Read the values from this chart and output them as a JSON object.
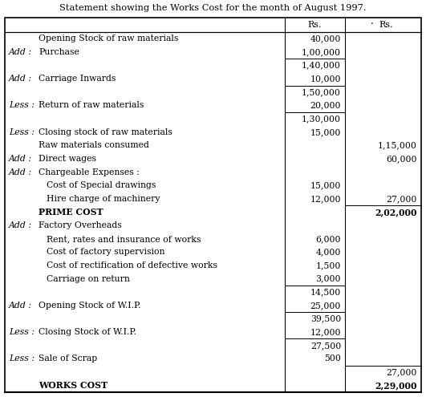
{
  "title": "Statement showing the Works Cost for the month of August 1997.",
  "rows": [
    {
      "prefix": "",
      "label": "Opening Stock of raw materials",
      "col1": "40,000",
      "col2": "",
      "line_above_col1": false,
      "line_above_col2": false,
      "bold": false
    },
    {
      "prefix": "Add :",
      "label": "Purchase",
      "col1": "1,00,000",
      "col2": "",
      "line_above_col1": false,
      "line_above_col2": false,
      "bold": false
    },
    {
      "prefix": "",
      "label": "",
      "col1": "1,40,000",
      "col2": "",
      "line_above_col1": true,
      "line_above_col2": false,
      "bold": false
    },
    {
      "prefix": "Add :",
      "label": "Carriage Inwards",
      "col1": "10,000",
      "col2": "",
      "line_above_col1": false,
      "line_above_col2": false,
      "bold": false
    },
    {
      "prefix": "",
      "label": "",
      "col1": "1,50,000",
      "col2": "",
      "line_above_col1": true,
      "line_above_col2": false,
      "bold": false
    },
    {
      "prefix": "Less :",
      "label": "Return of raw materials",
      "col1": "20,000",
      "col2": "",
      "line_above_col1": false,
      "line_above_col2": false,
      "bold": false
    },
    {
      "prefix": "",
      "label": "",
      "col1": "1,30,000",
      "col2": "",
      "line_above_col1": true,
      "line_above_col2": false,
      "bold": false
    },
    {
      "prefix": "Less :",
      "label": "Closing stock of raw materials",
      "col1": "15,000",
      "col2": "",
      "line_above_col1": false,
      "line_above_col2": false,
      "bold": false
    },
    {
      "prefix": "",
      "label": "Raw materials consumed",
      "col1": "",
      "col2": "1,15,000",
      "line_above_col1": false,
      "line_above_col2": false,
      "bold": false
    },
    {
      "prefix": "Add :",
      "label": "Direct wages",
      "col1": "",
      "col2": "60,000",
      "line_above_col1": false,
      "line_above_col2": false,
      "bold": false
    },
    {
      "prefix": "Add :",
      "label": "Chargeable Expenses :",
      "col1": "",
      "col2": "",
      "line_above_col1": false,
      "line_above_col2": false,
      "bold": false
    },
    {
      "prefix": "",
      "label": "Cost of Special drawings",
      "col1": "15,000",
      "col2": "",
      "line_above_col1": false,
      "line_above_col2": false,
      "bold": false
    },
    {
      "prefix": "",
      "label": "Hire charge of machinery",
      "col1": "12,000",
      "col2": "27,000",
      "line_above_col1": false,
      "line_above_col2": false,
      "bold": false
    },
    {
      "prefix": "",
      "label": "PRIME COST",
      "col1": "",
      "col2": "2,02,000",
      "line_above_col1": false,
      "line_above_col2": true,
      "bold": true
    },
    {
      "prefix": "Add :",
      "label": "Factory Overheads",
      "col1": "",
      "col2": "",
      "line_above_col1": false,
      "line_above_col2": false,
      "bold": false
    },
    {
      "prefix": "",
      "label": "Rent, rates and insurance of works",
      "col1": "6,000",
      "col2": "",
      "line_above_col1": false,
      "line_above_col2": false,
      "bold": false
    },
    {
      "prefix": "",
      "label": "Cost of factory supervision",
      "col1": "4,000",
      "col2": "",
      "line_above_col1": false,
      "line_above_col2": false,
      "bold": false
    },
    {
      "prefix": "",
      "label": "Cost of rectification of defective works",
      "col1": "1,500",
      "col2": "",
      "line_above_col1": false,
      "line_above_col2": false,
      "bold": false
    },
    {
      "prefix": "",
      "label": "Carriage on return",
      "col1": "3,000",
      "col2": "",
      "line_above_col1": false,
      "line_above_col2": false,
      "bold": false
    },
    {
      "prefix": "",
      "label": "",
      "col1": "14,500",
      "col2": "",
      "line_above_col1": true,
      "line_above_col2": false,
      "bold": false
    },
    {
      "prefix": "Add :",
      "label": "Opening Stock of W.I.P.",
      "col1": "25,000",
      "col2": "",
      "line_above_col1": false,
      "line_above_col2": false,
      "bold": false
    },
    {
      "prefix": "",
      "label": "",
      "col1": "39,500",
      "col2": "",
      "line_above_col1": true,
      "line_above_col2": false,
      "bold": false
    },
    {
      "prefix": "Less :",
      "label": "Closing Stock of W.I.P.",
      "col1": "12,000",
      "col2": "",
      "line_above_col1": false,
      "line_above_col2": false,
      "bold": false
    },
    {
      "prefix": "",
      "label": "",
      "col1": "27,500",
      "col2": "",
      "line_above_col1": true,
      "line_above_col2": false,
      "bold": false
    },
    {
      "prefix": "Less :",
      "label": "Sale of Scrap",
      "col1": "500",
      "col2": "",
      "line_above_col1": false,
      "line_above_col2": false,
      "bold": false
    },
    {
      "prefix": "",
      "label": "",
      "col1": "",
      "col2": "27,000",
      "line_above_col1": false,
      "line_above_col2": true,
      "bold": false
    },
    {
      "prefix": "",
      "label": "WORKS COST",
      "col1": "",
      "col2": "2,29,000",
      "line_above_col1": false,
      "line_above_col2": false,
      "bold": true
    }
  ],
  "bg_color": "#ffffff",
  "text_color": "#000000",
  "border_color": "#000000",
  "figsize": [
    5.31,
    4.95
  ],
  "dpi": 100
}
